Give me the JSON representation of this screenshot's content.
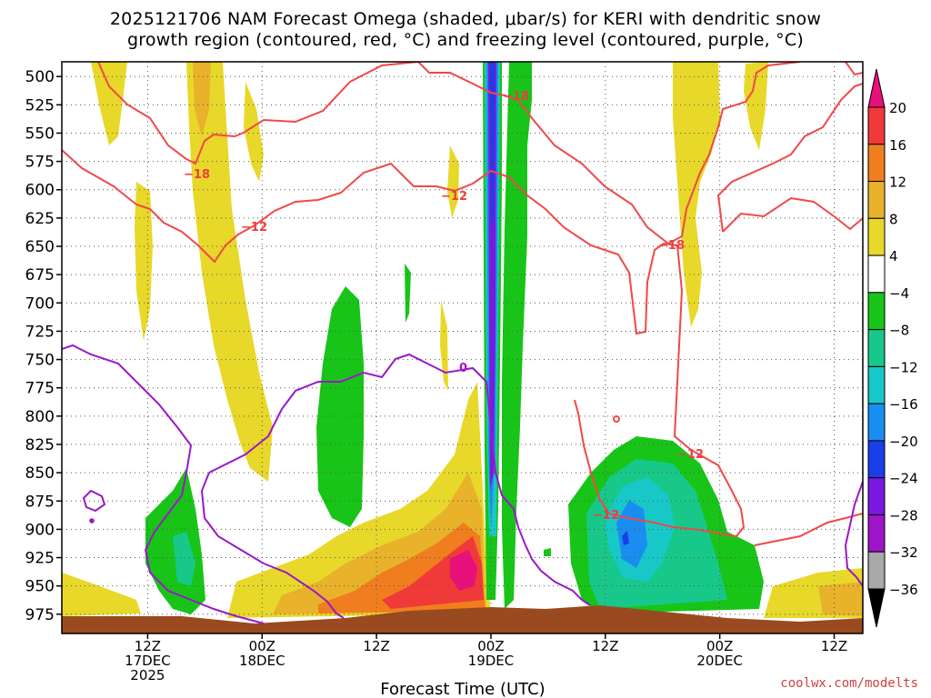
{
  "title_line1": "2025121706 NAM Forecast Omega (shaded, μbar/s) for KERI with dendritic snow",
  "title_line2": "growth region (contoured, red, °C) and freezing level (contoured, purple, °C)",
  "watermark": "coolwx.com/modelts",
  "chart_data": {
    "type": "heatmap",
    "xlabel": "Forecast Time (UTC)",
    "ylabel": "",
    "x_range_hours": [
      -21,
      63
    ],
    "y_axis": {
      "pressure_ticks": [
        500,
        525,
        550,
        575,
        600,
        625,
        650,
        675,
        700,
        725,
        750,
        775,
        800,
        825,
        850,
        875,
        900,
        925,
        950,
        975
      ],
      "inverted": true,
      "range_hpa": [
        487,
        992
      ]
    },
    "x_ticks": [
      {
        "hour": -12,
        "lines": [
          "12Z",
          "17DEC",
          "2025"
        ]
      },
      {
        "hour": 0,
        "lines": [
          "00Z",
          "18DEC"
        ]
      },
      {
        "hour": 12,
        "lines": [
          "12Z"
        ]
      },
      {
        "hour": 24,
        "lines": [
          "00Z",
          "19DEC"
        ]
      },
      {
        "hour": 36,
        "lines": [
          "12Z"
        ]
      },
      {
        "hour": 48,
        "lines": [
          "00Z",
          "20DEC"
        ]
      },
      {
        "hour": 60,
        "lines": [
          "12Z"
        ]
      }
    ],
    "colorbar": {
      "labels": [
        "20",
        "16",
        "12",
        "8",
        "4",
        "−4",
        "−8",
        "−12",
        "−16",
        "−20",
        "−24",
        "−28",
        "−32",
        "−36"
      ],
      "colors": [
        "#e8107a",
        "#f03a3a",
        "#f07e1e",
        "#e8b22a",
        "#e8d82a",
        "#ffffff",
        "#18c418",
        "#18c88a",
        "#18c8c8",
        "#1a8ef0",
        "#1a3ee8",
        "#7a18e0",
        "#9e14c8",
        "#a8a8a8",
        "#000000"
      ]
    },
    "contour_labels": [
      {
        "text": "−18",
        "color": "#f03c3c"
      },
      {
        "text": "−12",
        "color": "#f03c3c"
      },
      {
        "text": "0",
        "color": "#9a18c8"
      }
    ],
    "grid": true
  }
}
